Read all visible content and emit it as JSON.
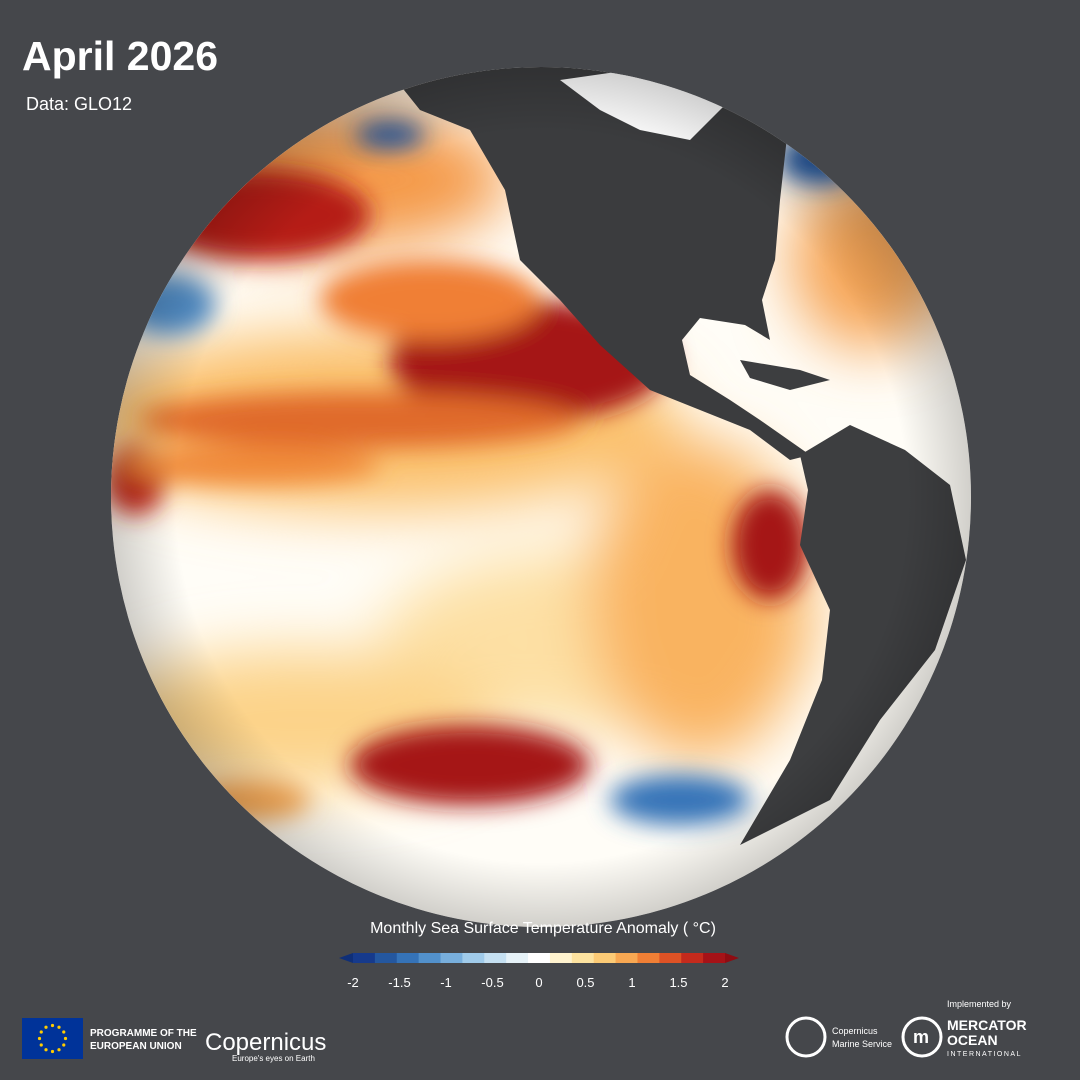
{
  "header": {
    "title": "April 2026",
    "subtitle": "Data: GLO12"
  },
  "colorbar": {
    "label": "Monthly Sea Surface Temperature Anomaly ( °C)",
    "ticks": [
      -2,
      -1.5,
      -1,
      -0.5,
      0,
      0.5,
      1,
      1.5,
      2
    ],
    "colors": [
      "#163a8c",
      "#24579f",
      "#3573b8",
      "#5291cc",
      "#78afdd",
      "#a0cbea",
      "#c5e0f2",
      "#e6f2f8",
      "#ffffff",
      "#fff3cf",
      "#fde3a0",
      "#fccb76",
      "#f8a852",
      "#f07f35",
      "#de5225",
      "#c42a1c",
      "#a51217"
    ],
    "under_color": "#0f2f78",
    "over_color": "#8f0c12"
  },
  "footer": {
    "eu_line1": "PROGRAMME OF THE",
    "eu_line2": "EUROPEAN UNION",
    "copernicus": "Copernicus",
    "copernicus_tagline": "Europe's eyes on Earth",
    "implemented_by": "Implemented by",
    "cms_line1": "Copernicus",
    "cms_line2": "Marine Service",
    "mercator_line1": "MERCATOR",
    "mercator_line2": "OCEAN",
    "mercator_line3": "INTERNATIONAL"
  }
}
